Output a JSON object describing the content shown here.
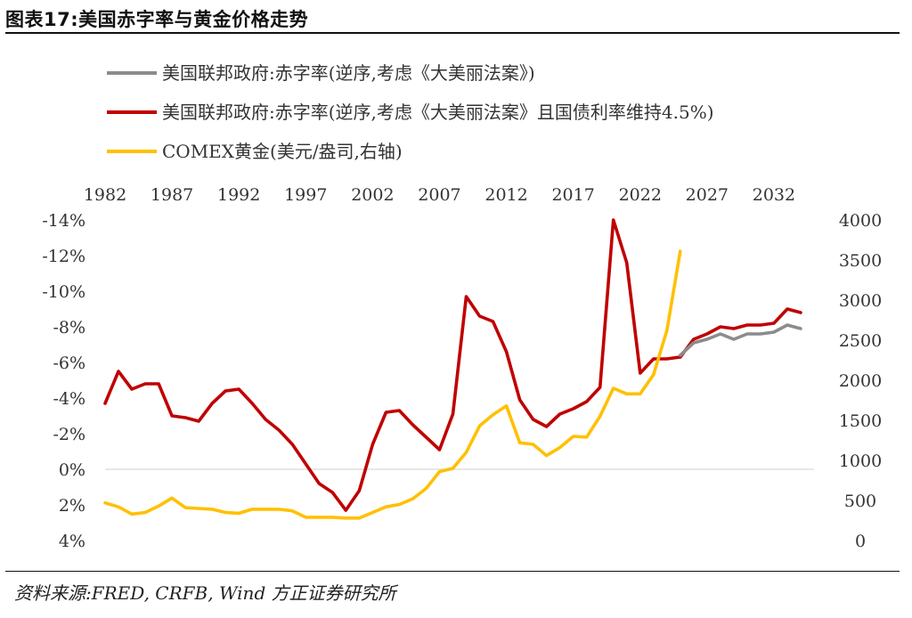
{
  "title": "图表17:美国赤字率与黄金价格走势",
  "source": "资料来源:FRED, CRFB, Wind 方正证券研究所",
  "chart_data": {
    "type": "line",
    "title": "图表17:美国赤字率与黄金价格走势",
    "legend_position": "top-left",
    "x_axis": {
      "position": "top",
      "min": 1982,
      "max": 2035,
      "ticks": [
        1982,
        1987,
        1992,
        1997,
        2002,
        2007,
        2012,
        2017,
        2022,
        2027,
        2032
      ],
      "tick_labels": [
        "1982",
        "1987",
        "1992",
        "1997",
        "2002",
        "2007",
        "2012",
        "2017",
        "2022",
        "2027",
        "2032"
      ]
    },
    "y_left": {
      "inverted": true,
      "min": 4,
      "max": -14,
      "ticks": [
        4,
        2,
        0,
        -2,
        -4,
        -6,
        -8,
        -10,
        -12,
        -14
      ],
      "tick_labels": [
        "4%",
        "2%",
        "0%",
        "-2%",
        "-4%",
        "-6%",
        "-8%",
        "-10%",
        "-12%",
        "-14%"
      ]
    },
    "y_right": {
      "min": 0,
      "max": 4000,
      "ticks": [
        0,
        500,
        1000,
        1500,
        2000,
        2500,
        3000,
        3500,
        4000
      ],
      "tick_labels": [
        "0",
        "500",
        "1000",
        "1500",
        "2000",
        "2500",
        "3000",
        "3500",
        "4000"
      ]
    },
    "grid": false,
    "series": [
      {
        "name": "美国联邦政府:赤字率(逆序,考虑《大美丽法案》)",
        "axis": "left",
        "color": "#8c8c8c",
        "points": [
          [
            2025,
            -6.4
          ],
          [
            2026,
            -7.1
          ],
          [
            2027,
            -7.3
          ],
          [
            2028,
            -7.6
          ],
          [
            2029,
            -7.3
          ],
          [
            2030,
            -7.6
          ],
          [
            2031,
            -7.6
          ],
          [
            2032,
            -7.7
          ],
          [
            2033,
            -8.1
          ],
          [
            2034,
            -7.9
          ]
        ]
      },
      {
        "name": "美国联邦政府:赤字率(逆序,考虑《大美丽法案》且国债利率维持4.5%)",
        "axis": "left",
        "color": "#c00000",
        "points": [
          [
            1982,
            -3.7
          ],
          [
            1983,
            -5.5
          ],
          [
            1984,
            -4.5
          ],
          [
            1985,
            -4.8
          ],
          [
            1986,
            -4.8
          ],
          [
            1987,
            -3.0
          ],
          [
            1988,
            -2.9
          ],
          [
            1989,
            -2.7
          ],
          [
            1990,
            -3.7
          ],
          [
            1991,
            -4.4
          ],
          [
            1992,
            -4.5
          ],
          [
            1993,
            -3.7
          ],
          [
            1994,
            -2.8
          ],
          [
            1995,
            -2.2
          ],
          [
            1996,
            -1.4
          ],
          [
            1997,
            -0.3
          ],
          [
            1998,
            0.8
          ],
          [
            1999,
            1.3
          ],
          [
            2000,
            2.3
          ],
          [
            2001,
            1.2
          ],
          [
            2002,
            -1.4
          ],
          [
            2003,
            -3.2
          ],
          [
            2004,
            -3.3
          ],
          [
            2005,
            -2.5
          ],
          [
            2006,
            -1.8
          ],
          [
            2007,
            -1.1
          ],
          [
            2008,
            -3.1
          ],
          [
            2009,
            -9.7
          ],
          [
            2010,
            -8.6
          ],
          [
            2011,
            -8.3
          ],
          [
            2012,
            -6.6
          ],
          [
            2013,
            -3.9
          ],
          [
            2014,
            -2.8
          ],
          [
            2015,
            -2.4
          ],
          [
            2016,
            -3.1
          ],
          [
            2017,
            -3.4
          ],
          [
            2018,
            -3.8
          ],
          [
            2019,
            -4.6
          ],
          [
            2020,
            -14.0
          ],
          [
            2021,
            -11.6
          ],
          [
            2022,
            -5.4
          ],
          [
            2023,
            -6.2
          ],
          [
            2024,
            -6.2
          ],
          [
            2025,
            -6.3
          ],
          [
            2026,
            -7.3
          ],
          [
            2027,
            -7.6
          ],
          [
            2028,
            -8.0
          ],
          [
            2029,
            -7.9
          ],
          [
            2030,
            -8.1
          ],
          [
            2031,
            -8.1
          ],
          [
            2032,
            -8.2
          ],
          [
            2033,
            -9.0
          ],
          [
            2034,
            -8.8
          ]
        ]
      },
      {
        "name": "COMEX黄金(美元/盎司,右轴)",
        "axis": "right",
        "color": "#ffc000",
        "points": [
          [
            1982,
            470
          ],
          [
            1983,
            420
          ],
          [
            1984,
            330
          ],
          [
            1985,
            350
          ],
          [
            1986,
            430
          ],
          [
            1987,
            530
          ],
          [
            1988,
            410
          ],
          [
            1989,
            400
          ],
          [
            1990,
            390
          ],
          [
            1991,
            350
          ],
          [
            1992,
            340
          ],
          [
            1993,
            390
          ],
          [
            1994,
            390
          ],
          [
            1995,
            390
          ],
          [
            1996,
            370
          ],
          [
            1997,
            290
          ],
          [
            1998,
            290
          ],
          [
            1999,
            290
          ],
          [
            2000,
            280
          ],
          [
            2001,
            280
          ],
          [
            2002,
            350
          ],
          [
            2003,
            420
          ],
          [
            2004,
            450
          ],
          [
            2005,
            520
          ],
          [
            2006,
            650
          ],
          [
            2007,
            860
          ],
          [
            2008,
            900
          ],
          [
            2009,
            1100
          ],
          [
            2010,
            1430
          ],
          [
            2011,
            1570
          ],
          [
            2012,
            1680
          ],
          [
            2013,
            1220
          ],
          [
            2014,
            1200
          ],
          [
            2015,
            1060
          ],
          [
            2016,
            1160
          ],
          [
            2017,
            1300
          ],
          [
            2018,
            1290
          ],
          [
            2019,
            1550
          ],
          [
            2020,
            1900
          ],
          [
            2021,
            1830
          ],
          [
            2022,
            1830
          ],
          [
            2023,
            2070
          ],
          [
            2024,
            2620
          ],
          [
            2025,
            3610
          ]
        ]
      }
    ]
  }
}
